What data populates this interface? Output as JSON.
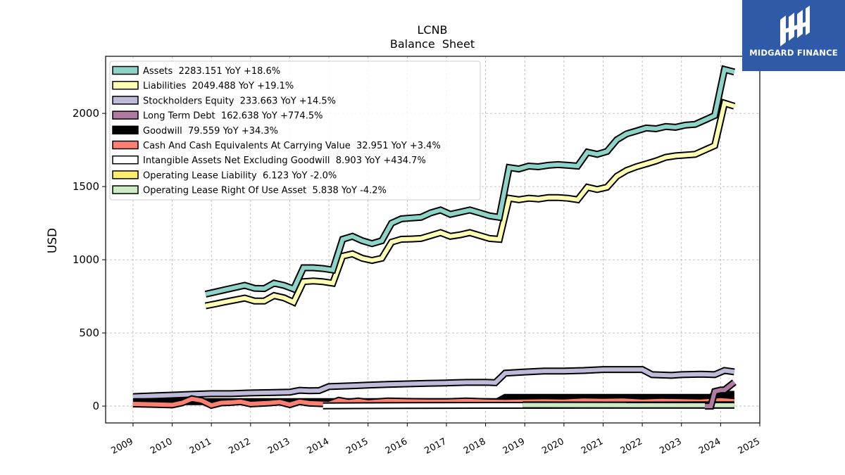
{
  "chart_data": {
    "type": "area",
    "title": "LCNB",
    "subtitle": "Balance  Sheet",
    "xlabel": "",
    "ylabel": "USD",
    "xlim": [
      2008.3,
      2025.0
    ],
    "ylim": [
      -115,
      2390
    ],
    "x_ticks": [
      "2009",
      "2010",
      "2011",
      "2012",
      "2013",
      "2014",
      "2015",
      "2016",
      "2017",
      "2018",
      "2019",
      "2020",
      "2021",
      "2022",
      "2023",
      "2024",
      "2025"
    ],
    "y_ticks": [
      0,
      500,
      1000,
      1500,
      2000
    ],
    "grid": true,
    "legend_placement": "top-left",
    "series": [
      {
        "name": "Assets",
        "legend": "Assets  2283.151 YoY +18.6%",
        "color": "#8dd3c7",
        "x": [
          2010.85,
          2011.1,
          2011.35,
          2011.6,
          2011.85,
          2012.1,
          2012.35,
          2012.6,
          2012.85,
          2013.1,
          2013.35,
          2013.6,
          2013.85,
          2014.1,
          2014.35,
          2014.6,
          2014.85,
          2015.1,
          2015.35,
          2015.6,
          2015.85,
          2016.1,
          2016.35,
          2016.6,
          2016.85,
          2017.1,
          2017.35,
          2017.6,
          2017.85,
          2018.1,
          2018.35,
          2018.6,
          2018.85,
          2019.1,
          2019.35,
          2019.6,
          2019.85,
          2020.1,
          2020.35,
          2020.6,
          2020.85,
          2021.1,
          2021.35,
          2021.6,
          2021.85,
          2022.1,
          2022.35,
          2022.6,
          2022.85,
          2023.1,
          2023.35,
          2023.6,
          2023.85,
          2024.1,
          2024.35
        ],
        "values": [
          765,
          780,
          795,
          810,
          825,
          805,
          803,
          840,
          825,
          800,
          945,
          945,
          940,
          930,
          1140,
          1160,
          1130,
          1110,
          1130,
          1250,
          1280,
          1285,
          1290,
          1320,
          1340,
          1310,
          1325,
          1340,
          1320,
          1300,
          1290,
          1630,
          1620,
          1640,
          1635,
          1645,
          1650,
          1645,
          1640,
          1735,
          1720,
          1740,
          1820,
          1860,
          1880,
          1900,
          1895,
          1910,
          1905,
          1920,
          1925,
          1955,
          1985,
          2300,
          2283
        ]
      },
      {
        "name": "Liabilities",
        "legend": "Liabilities  2049.488 YoY +19.1%",
        "color": "#ffffb3",
        "x": [
          2010.85,
          2011.1,
          2011.35,
          2011.6,
          2011.85,
          2012.1,
          2012.35,
          2012.6,
          2012.85,
          2013.1,
          2013.35,
          2013.6,
          2013.85,
          2014.1,
          2014.35,
          2014.6,
          2014.85,
          2015.1,
          2015.35,
          2015.6,
          2015.85,
          2016.1,
          2016.35,
          2016.6,
          2016.85,
          2017.1,
          2017.35,
          2017.6,
          2017.85,
          2018.1,
          2018.35,
          2018.6,
          2018.85,
          2019.1,
          2019.35,
          2019.6,
          2019.85,
          2020.1,
          2020.35,
          2020.6,
          2020.85,
          2021.1,
          2021.35,
          2021.6,
          2021.85,
          2022.1,
          2022.35,
          2022.6,
          2022.85,
          2023.1,
          2023.35,
          2023.6,
          2023.85,
          2024.1,
          2024.35
        ],
        "values": [
          685,
          698,
          712,
          725,
          738,
          718,
          718,
          755,
          740,
          710,
          850,
          855,
          850,
          840,
          1025,
          1040,
          1010,
          995,
          1010,
          1120,
          1140,
          1142,
          1145,
          1165,
          1185,
          1160,
          1170,
          1185,
          1165,
          1145,
          1140,
          1420,
          1410,
          1420,
          1415,
          1425,
          1425,
          1420,
          1410,
          1495,
          1480,
          1495,
          1570,
          1610,
          1635,
          1655,
          1675,
          1700,
          1710,
          1715,
          1720,
          1750,
          1780,
          2070,
          2049
        ]
      },
      {
        "name": "Stockholders Equity",
        "legend": "Stockholders Equity  233.663 YoY +14.5%",
        "color": "#bebada",
        "x": [
          2009.0,
          2009.5,
          2010.0,
          2010.5,
          2011.0,
          2011.5,
          2012.0,
          2012.5,
          2013.0,
          2013.25,
          2013.5,
          2013.75,
          2014.0,
          2014.5,
          2015.0,
          2015.5,
          2016.0,
          2016.5,
          2017.0,
          2017.5,
          2018.0,
          2018.25,
          2018.5,
          2019.0,
          2019.5,
          2020.0,
          2020.5,
          2021.0,
          2021.5,
          2022.0,
          2022.25,
          2022.75,
          2023.0,
          2023.5,
          2023.85,
          2024.1,
          2024.35
        ],
        "values": [
          65,
          70,
          75,
          80,
          85,
          85,
          90,
          92,
          95,
          108,
          105,
          106,
          133,
          138,
          143,
          148,
          152,
          155,
          158,
          162,
          163,
          160,
          225,
          233,
          240,
          240,
          243,
          250,
          250,
          250,
          215,
          210,
          215,
          218,
          215,
          243,
          234
        ]
      },
      {
        "name": "Long Term Debt",
        "legend": "Long Term Debt  162.638 YoY +774.5%",
        "color": "#b07aa1",
        "x": [
          2023.6,
          2023.75,
          2023.85,
          2024.0,
          2024.1,
          2024.35
        ],
        "values": [
          0,
          0,
          100,
          110,
          110,
          163
        ]
      },
      {
        "name": "Goodwill",
        "legend": "Goodwill  79.559 YoY +34.3%",
        "color": "#000000",
        "x": [
          2009.0,
          2018.3,
          2018.5,
          2023.75,
          2023.85,
          2024.35
        ],
        "values": [
          30,
          30,
          59,
          59,
          80,
          80
        ]
      },
      {
        "name": "Cash And Cash Equivalents At Carrying Value",
        "legend": "Cash And Cash Equivalents At Carrying Value  32.951 YoY +3.4%",
        "color": "#fb8072",
        "x": [
          2009.0,
          2009.5,
          2010.0,
          2010.25,
          2010.5,
          2010.75,
          2011.0,
          2011.25,
          2011.5,
          2011.75,
          2012.0,
          2012.25,
          2012.5,
          2012.75,
          2013.0,
          2013.25,
          2013.5,
          2014.0,
          2014.25,
          2014.5,
          2014.75,
          2015.0,
          2015.5,
          2016.0,
          2016.5,
          2017.0,
          2017.5,
          2018.0,
          2018.5,
          2019.0,
          2019.5,
          2020.0,
          2020.5,
          2021.0,
          2021.5,
          2022.0,
          2022.5,
          2023.0,
          2023.5,
          2024.0,
          2024.35
        ],
        "values": [
          15,
          12,
          8,
          22,
          50,
          38,
          5,
          22,
          25,
          30,
          15,
          18,
          22,
          28,
          10,
          30,
          20,
          15,
          40,
          28,
          35,
          25,
          35,
          32,
          30,
          30,
          35,
          30,
          28,
          30,
          32,
          30,
          38,
          35,
          38,
          30,
          35,
          33,
          30,
          40,
          33
        ]
      },
      {
        "name": "Intangible Assets Net Excluding Goodwill",
        "legend": "Intangible Assets Net Excluding Goodwill  8.903 YoY +434.7%",
        "color": "#ffffff",
        "x": [
          2013.85,
          2016.0,
          2018.0,
          2019.0,
          2024.35
        ],
        "values": [
          2,
          4,
          5,
          5,
          9
        ]
      },
      {
        "name": "Operating Lease Liability",
        "legend": "Operating Lease Liability  6.123 YoY -2.0%",
        "color": "#ffed6f",
        "x": [
          2018.95,
          2024.35
        ],
        "values": [
          8,
          6
        ]
      },
      {
        "name": "Operating Lease Right Of Use Asset",
        "legend": "Operating Lease Right Of Use Asset  5.838 YoY -4.2%",
        "color": "#ccebc5",
        "x": [
          2018.95,
          2024.35
        ],
        "values": [
          7,
          6
        ]
      }
    ]
  },
  "logo": {
    "text": "MIDGARD FINANCE",
    "name": "midgard-finance-logo"
  }
}
